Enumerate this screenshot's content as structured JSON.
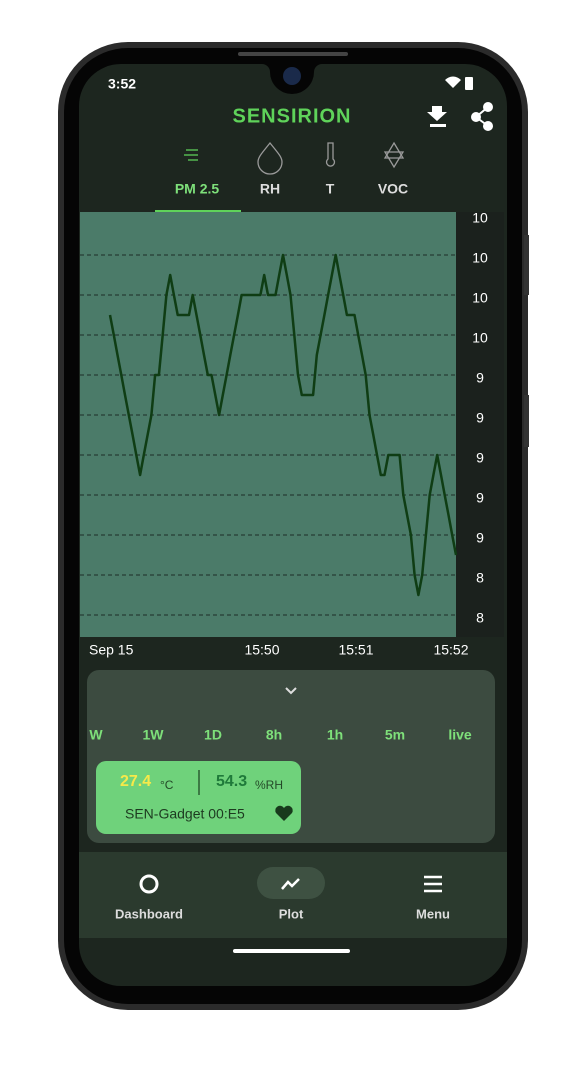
{
  "status": {
    "time": "3:52"
  },
  "header": {
    "brand": "SENSIRION"
  },
  "tabs": [
    "PM 2.5",
    "RH",
    "T",
    "VOC"
  ],
  "chart_data": {
    "type": "line",
    "color": "#0f3d14",
    "grid": true,
    "values": [
      9.7,
      9.6,
      9.5,
      9.4,
      9.3,
      9.2,
      9.1,
      9.0,
      8.9,
      9.0,
      9.1,
      9.2,
      9.4,
      9.4,
      9.6,
      9.8,
      9.9,
      9.8,
      9.7,
      9.7,
      9.7,
      9.7,
      9.8,
      9.7,
      9.6,
      9.5,
      9.4,
      9.4,
      9.3,
      9.2,
      9.3,
      9.4,
      9.5,
      9.6,
      9.7,
      9.8,
      9.8,
      9.8,
      9.8,
      9.8,
      9.8,
      9.9,
      9.8,
      9.8,
      9.8,
      9.9,
      10.0,
      9.9,
      9.8,
      9.6,
      9.4,
      9.3,
      9.3,
      9.3,
      9.3,
      9.5,
      9.6,
      9.7,
      9.8,
      9.9,
      10.0,
      9.9,
      9.8,
      9.7,
      9.7,
      9.7,
      9.6,
      9.5,
      9.4,
      9.2,
      9.1,
      9.0,
      8.9,
      8.9,
      9.0,
      9.0,
      9.0,
      9.0,
      8.8,
      8.7,
      8.6,
      8.4,
      8.3,
      8.4,
      8.6,
      8.8,
      8.9,
      9.0,
      8.9,
      8.8,
      8.7,
      8.6,
      8.5
    ],
    "ylim": [
      8.09,
      10.215
    ],
    "yticks": [
      {
        "value": 10.2,
        "label": "10"
      },
      {
        "value": 10.0,
        "label": "10"
      },
      {
        "value": 9.8,
        "label": "10"
      },
      {
        "value": 9.6,
        "label": "10"
      },
      {
        "value": 9.4,
        "label": "9"
      },
      {
        "value": 9.2,
        "label": "9"
      },
      {
        "value": 9.0,
        "label": "9"
      },
      {
        "value": 8.8,
        "label": "9"
      },
      {
        "value": 8.6,
        "label": "9"
      },
      {
        "value": 8.4,
        "label": "8"
      },
      {
        "value": 8.2,
        "label": "8"
      }
    ],
    "xticklabels": [
      "Sep 15",
      "15:50",
      "15:51",
      "15:52"
    ]
  },
  "ranges": [
    "W",
    "1W",
    "1D",
    "8h",
    "1h",
    "5m",
    "live"
  ],
  "card": {
    "temperature": 27.4,
    "temperature_unit": "°C",
    "humidity": 54.3,
    "humidity_unit": "%RH",
    "device": "SEN-Gadget 00:E5"
  },
  "nav": [
    "Dashboard",
    "Plot",
    "Menu"
  ]
}
